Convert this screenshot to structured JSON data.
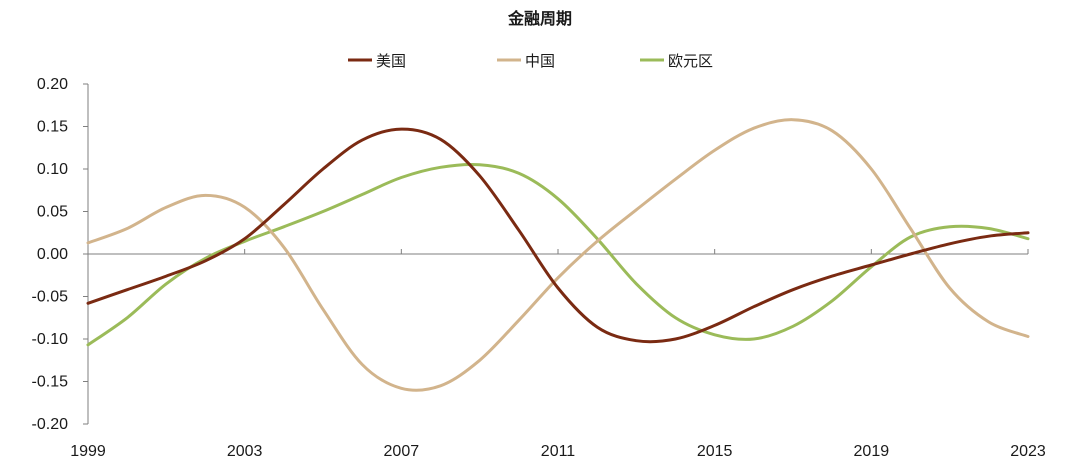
{
  "chart_data": {
    "type": "line",
    "title": "金融周期",
    "xlabel": "",
    "ylabel": "",
    "xlim": [
      1999,
      2023
    ],
    "ylim": [
      -0.2,
      0.2
    ],
    "x_ticks": [
      "1999",
      "2003",
      "2007",
      "2011",
      "2015",
      "2019",
      "2023"
    ],
    "y_ticks": [
      "0.20",
      "0.15",
      "0.10",
      "0.05",
      "0.00",
      "-0.05",
      "-0.10",
      "-0.15",
      "-0.20"
    ],
    "legend_position": "top-center",
    "grid": false,
    "series": [
      {
        "name": "美国",
        "color": "#7a2a12",
        "x": [
          1999,
          2000,
          2001,
          2002,
          2003,
          2004,
          2005,
          2006,
          2007,
          2008,
          2009,
          2010,
          2011,
          2012,
          2013,
          2014,
          2015,
          2016,
          2017,
          2018,
          2019,
          2020,
          2021,
          2022,
          2023
        ],
        "y": [
          -0.058,
          -0.042,
          -0.026,
          -0.008,
          0.018,
          0.058,
          0.1,
          0.134,
          0.147,
          0.135,
          0.092,
          0.028,
          -0.04,
          -0.086,
          -0.102,
          -0.1,
          -0.084,
          -0.062,
          -0.042,
          -0.026,
          -0.013,
          0.0,
          0.012,
          0.021,
          0.025
        ]
      },
      {
        "name": "中国",
        "color": "#d2b48c",
        "x": [
          1999,
          2000,
          2001,
          2002,
          2003,
          2004,
          2005,
          2006,
          2007,
          2008,
          2009,
          2010,
          2011,
          2012,
          2013,
          2014,
          2015,
          2016,
          2017,
          2018,
          2019,
          2020,
          2021,
          2022,
          2023
        ],
        "y": [
          0.013,
          0.03,
          0.055,
          0.069,
          0.055,
          0.008,
          -0.065,
          -0.13,
          -0.158,
          -0.155,
          -0.125,
          -0.078,
          -0.028,
          0.015,
          0.052,
          0.088,
          0.122,
          0.148,
          0.158,
          0.145,
          0.1,
          0.03,
          -0.04,
          -0.08,
          -0.097
        ]
      },
      {
        "name": "欧元区",
        "color": "#9bbb59",
        "x": [
          1999,
          2000,
          2001,
          2002,
          2003,
          2004,
          2005,
          2006,
          2007,
          2008,
          2009,
          2010,
          2011,
          2012,
          2013,
          2014,
          2015,
          2016,
          2017,
          2018,
          2019,
          2020,
          2021,
          2022,
          2023
        ],
        "y": [
          -0.107,
          -0.075,
          -0.035,
          -0.005,
          0.015,
          0.032,
          0.05,
          0.07,
          0.09,
          0.102,
          0.105,
          0.095,
          0.065,
          0.018,
          -0.035,
          -0.075,
          -0.095,
          -0.1,
          -0.085,
          -0.055,
          -0.015,
          0.02,
          0.032,
          0.03,
          0.018
        ]
      }
    ]
  }
}
